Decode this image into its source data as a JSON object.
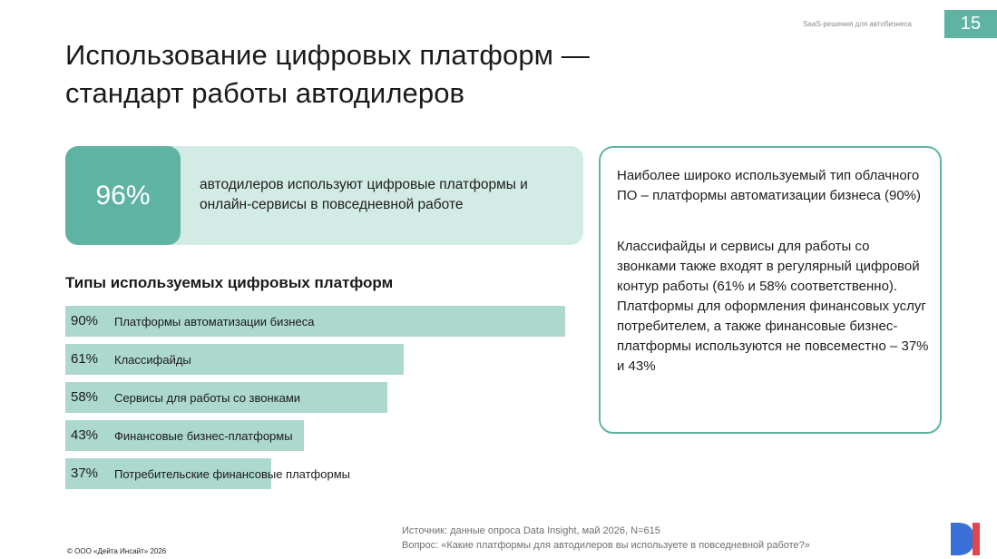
{
  "header": {
    "label": "SaaS-решения для автобизнеса",
    "page_number": "15"
  },
  "title": {
    "line1": "Использование цифровых платформ —",
    "line2": "стандарт работы автодилеров"
  },
  "stat": {
    "value": "96%",
    "text": "автодилеров используют цифровые платформы и онлайн-сервисы в повседневной работе"
  },
  "section_title": "Типы используемых цифровых платформ",
  "chart_data": {
    "type": "bar",
    "categories": [
      "Платформы автоматизации бизнеса",
      "Классифайды",
      "Сервисы для работы со звонками",
      "Финансовые бизнес-платформы",
      "Потребительские финансовые платформы"
    ],
    "values": [
      90,
      61,
      58,
      43,
      37
    ],
    "value_labels": [
      "90%",
      "61%",
      "58%",
      "43%",
      "37%"
    ],
    "title": "Типы используемых цифровых платформ",
    "xlim": [
      0,
      100
    ],
    "orientation": "horizontal",
    "bar_color": "#acd8ce"
  },
  "info": {
    "p1": "Наиболее широко используемый тип облачного ПО – платформы автоматизации бизнеса (90%)",
    "p2": "Классифайды и сервисы для работы со звонками также входят в регулярный цифровой контур работы (61% и 58% соответственно). Платформы для оформления финансовых услуг потребителем, а также финансовые бизнес-платформы используются не повсеместно – 37% и 43%"
  },
  "footer": {
    "source": "Источник: данные опроса Data Insight, май 2026, N=615",
    "question": "Вопрос: «Какие платформы для автодилеров вы используете в повседневной работе?»",
    "copyright": "© ООО «Дейта Инсайт» 2026"
  },
  "logo": {
    "text": "DI",
    "colors": {
      "d": "#3a6fd8",
      "i": "#e0474c"
    }
  },
  "colors": {
    "accent": "#5fb3a3",
    "accent_light": "#d3ebe5",
    "bar": "#acd8ce"
  }
}
